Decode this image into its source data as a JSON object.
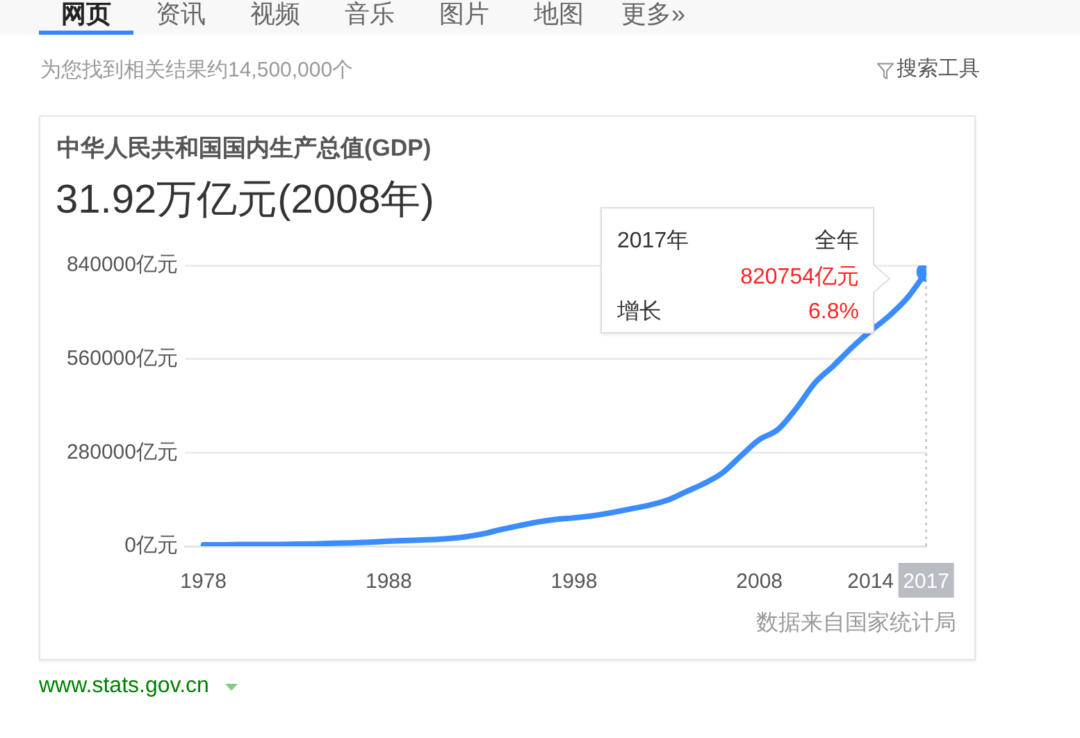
{
  "chart_data": {
    "type": "line",
    "title": "中华人民共和国国内生产总值(GDP)",
    "subtitle": "31.92万亿元(2008年)",
    "x": [
      1978,
      1979,
      1980,
      1981,
      1982,
      1983,
      1984,
      1985,
      1986,
      1987,
      1988,
      1989,
      1990,
      1991,
      1992,
      1993,
      1994,
      1995,
      1996,
      1997,
      1998,
      1999,
      2000,
      2001,
      2002,
      2003,
      2004,
      2005,
      2006,
      2007,
      2008,
      2009,
      2010,
      2011,
      2012,
      2013,
      2014,
      2015,
      2016,
      2017
    ],
    "series": [
      {
        "color": "#3a8cff",
        "values": [
          4000,
          4000,
          5000,
          5000,
          5000,
          6000,
          7000,
          9000,
          10000,
          12000,
          15000,
          17000,
          19000,
          22000,
          27000,
          36000,
          49000,
          61000,
          72000,
          80000,
          85000,
          91000,
          100000,
          111000,
          122000,
          137000,
          162000,
          187000,
          219000,
          270000,
          319000,
          349000,
          413000,
          489000,
          540000,
          595000,
          644000,
          689000,
          744000,
          820754
        ]
      },
      {
        "type": "scatter",
        "x": [
          2017
        ],
        "values": [
          820754
        ],
        "color": "#3a8cff",
        "marker": "circle"
      }
    ],
    "xlim": [
      1977,
      2017
    ],
    "xticks": [
      1978,
      1988,
      1998,
      2008,
      2014,
      2017
    ],
    "ylim": [
      0,
      840000
    ],
    "yticks": [
      {
        "value": 0,
        "label": "0亿元"
      },
      {
        "value": 280000,
        "label": "280000亿元"
      },
      {
        "value": 560000,
        "label": "560000亿元"
      },
      {
        "value": 840000,
        "label": "840000亿元"
      }
    ],
    "grid": "y",
    "legend": false,
    "marker": "none",
    "ref_lines": [
      {
        "axis": "x",
        "value": 2017,
        "color": "#cccccc",
        "line_style": "dotted"
      }
    ],
    "annotations": [
      "2017年",
      "全年",
      "820754亿元",
      "增长",
      "6.8%",
      "数据来自国家统计局",
      "为您找到相关结果约14,500,000个",
      "搜索工具",
      "www.stats.gov.cn",
      "网页",
      "资讯",
      "视频",
      "音乐",
      "图片",
      "地图",
      "更多»"
    ]
  }
}
